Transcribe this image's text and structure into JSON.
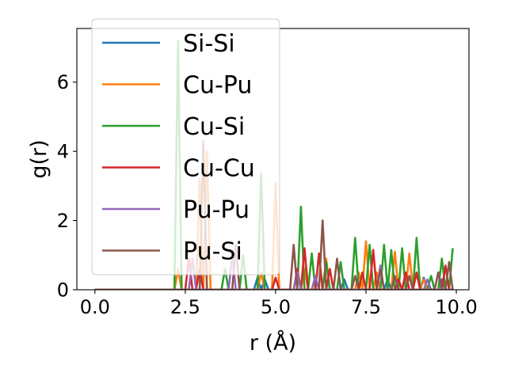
{
  "chart_data": {
    "type": "line",
    "title": "",
    "xlabel": "r (Å)",
    "ylabel": "g(r)",
    "xlim": [
      -0.5,
      10.35
    ],
    "ylim": [
      0,
      7.55
    ],
    "xticks": [
      0.0,
      2.5,
      5.0,
      7.5,
      10.0
    ],
    "xtick_labels": [
      "0.0",
      "2.5",
      "5.0",
      "7.5",
      "10.0"
    ],
    "yticks": [
      0,
      2,
      4,
      6
    ],
    "ytick_labels": [
      "0",
      "2",
      "4",
      "6"
    ],
    "grid": false,
    "legend_position": "top-left",
    "x_step": 0.1,
    "x_start": 0.0,
    "x_end": 9.9,
    "series": [
      {
        "name": "Si-Si",
        "color": "#1f77b4",
        "peaks": [
          [
            4.5,
            0.35
          ],
          [
            4.7,
            0.3
          ],
          [
            6.9,
            0.3
          ],
          [
            8.1,
            0.3
          ],
          [
            9.1,
            0.35
          ],
          [
            9.6,
            0.3
          ]
        ]
      },
      {
        "name": "Cu-Pu",
        "color": "#ff7f0e",
        "peaks": [
          [
            2.3,
            0.6
          ],
          [
            2.9,
            3.2
          ],
          [
            3.1,
            4.0
          ],
          [
            4.6,
            0.5
          ],
          [
            5.0,
            3.1
          ],
          [
            5.8,
            0.6
          ],
          [
            6.4,
            0.9
          ],
          [
            7.3,
            0.5
          ],
          [
            7.5,
            1.4
          ],
          [
            7.8,
            0.5
          ],
          [
            8.3,
            1.1
          ],
          [
            8.7,
            1.05
          ],
          [
            9.1,
            0.3
          ]
        ]
      },
      {
        "name": "Cu-Si",
        "color": "#2ca02c",
        "peaks": [
          [
            2.3,
            7.2
          ],
          [
            3.6,
            0.6
          ],
          [
            4.1,
            1.0
          ],
          [
            4.6,
            3.35
          ],
          [
            5.7,
            2.4
          ],
          [
            6.0,
            1.05
          ],
          [
            6.4,
            0.8
          ],
          [
            6.8,
            0.8
          ],
          [
            7.2,
            1.5
          ],
          [
            7.6,
            1.3
          ],
          [
            8.0,
            1.3
          ],
          [
            8.2,
            1.15
          ],
          [
            8.5,
            1.2
          ],
          [
            8.9,
            1.5
          ],
          [
            9.3,
            0.4
          ],
          [
            9.6,
            0.9
          ],
          [
            9.9,
            1.2
          ]
        ]
      },
      {
        "name": "Cu-Cu",
        "color": "#d62728",
        "peaks": [
          [
            2.6,
            0.9
          ],
          [
            2.9,
            0.6
          ],
          [
            5.0,
            0.35
          ],
          [
            5.6,
            0.6
          ],
          [
            5.8,
            1.2
          ],
          [
            6.2,
            1.05
          ],
          [
            6.5,
            0.6
          ],
          [
            7.4,
            0.5
          ],
          [
            7.7,
            1.15
          ],
          [
            8.4,
            0.3
          ],
          [
            8.6,
            0.5
          ],
          [
            8.9,
            0.5
          ],
          [
            9.7,
            0.7
          ]
        ]
      },
      {
        "name": "Pu-Pu",
        "color": "#9467bd",
        "peaks": [
          [
            2.7,
            0.9
          ],
          [
            3.8,
            1.0
          ],
          [
            5.6,
            0.5
          ],
          [
            6.1,
            0.4
          ],
          [
            7.9,
            0.7
          ],
          [
            9.2,
            0.3
          ]
        ]
      },
      {
        "name": "Pu-Si",
        "color": "#8c564b",
        "peaks": [
          [
            3.0,
            4.3
          ],
          [
            3.9,
            1.3
          ],
          [
            5.5,
            1.3
          ],
          [
            6.3,
            2.0
          ],
          [
            6.7,
            0.9
          ],
          [
            7.2,
            0.4
          ],
          [
            7.9,
            0.6
          ],
          [
            8.3,
            0.4
          ],
          [
            8.7,
            0.4
          ],
          [
            9.5,
            0.5
          ],
          [
            9.8,
            0.8
          ]
        ]
      }
    ]
  }
}
